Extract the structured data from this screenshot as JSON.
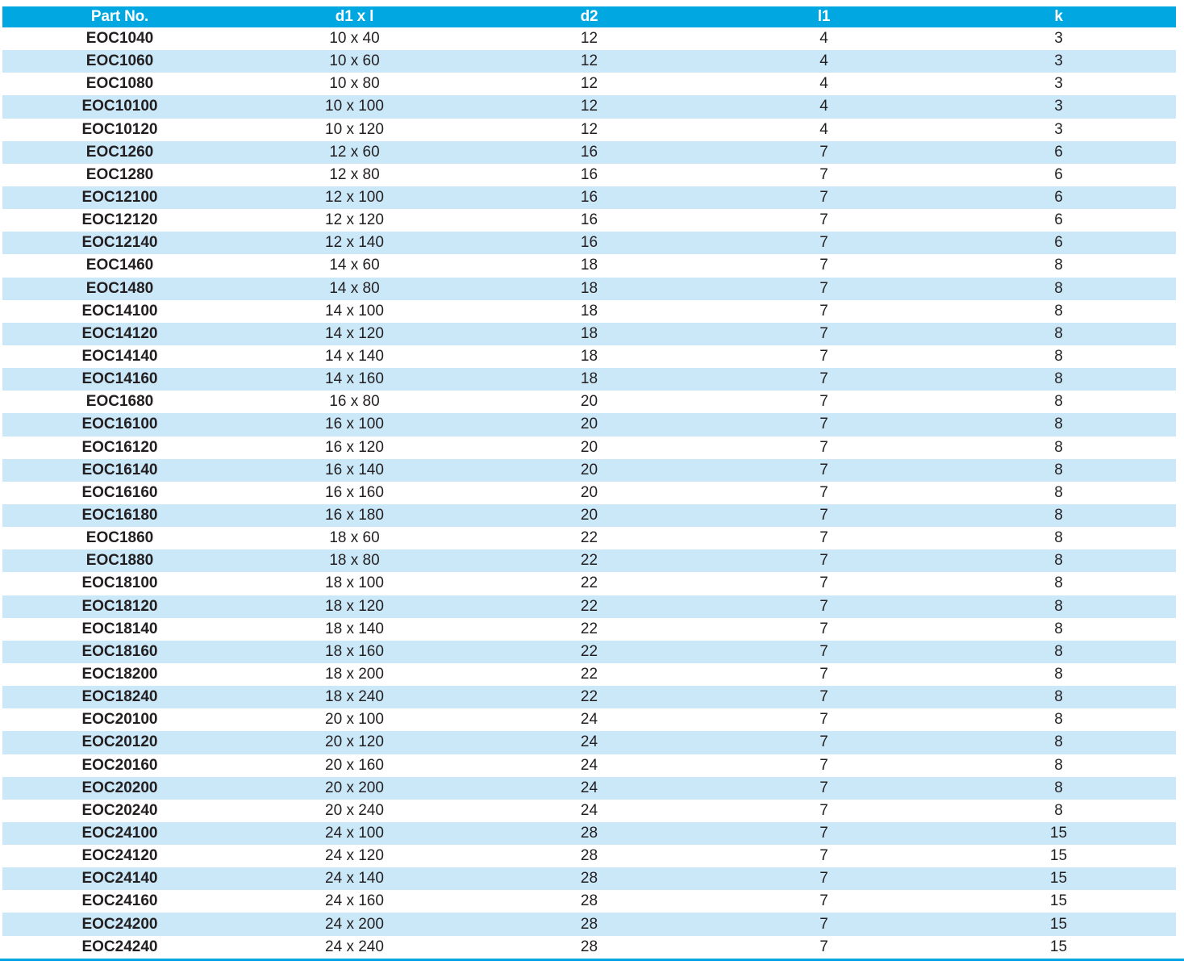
{
  "colors": {
    "header_bg": "#00A7E1",
    "header_text": "#FFFFFF",
    "stripe_bg": "#CBE8F9",
    "text": "#231F20",
    "bottom_rule": "#00A7E1"
  },
  "table": {
    "columns": [
      "Part No.",
      "d1 x l",
      "d2",
      "l1",
      "k"
    ],
    "rows": [
      [
        "EOC1040",
        "10 x 40",
        "12",
        "4",
        "3"
      ],
      [
        "EOC1060",
        "10 x 60",
        "12",
        "4",
        "3"
      ],
      [
        "EOC1080",
        "10 x 80",
        "12",
        "4",
        "3"
      ],
      [
        "EOC10100",
        "10 x 100",
        "12",
        "4",
        "3"
      ],
      [
        "EOC10120",
        "10 x 120",
        "12",
        "4",
        "3"
      ],
      [
        "EOC1260",
        "12 x 60",
        "16",
        "7",
        "6"
      ],
      [
        "EOC1280",
        "12 x 80",
        "16",
        "7",
        "6"
      ],
      [
        "EOC12100",
        "12 x 100",
        "16",
        "7",
        "6"
      ],
      [
        "EOC12120",
        "12 x 120",
        "16",
        "7",
        "6"
      ],
      [
        "EOC12140",
        "12 x 140",
        "16",
        "7",
        "6"
      ],
      [
        "EOC1460",
        "14 x 60",
        "18",
        "7",
        "8"
      ],
      [
        "EOC1480",
        "14 x 80",
        "18",
        "7",
        "8"
      ],
      [
        "EOC14100",
        "14 x 100",
        "18",
        "7",
        "8"
      ],
      [
        "EOC14120",
        "14 x 120",
        "18",
        "7",
        "8"
      ],
      [
        "EOC14140",
        "14 x 140",
        "18",
        "7",
        "8"
      ],
      [
        "EOC14160",
        "14 x 160",
        "18",
        "7",
        "8"
      ],
      [
        "EOC1680",
        "16 x 80",
        "20",
        "7",
        "8"
      ],
      [
        "EOC16100",
        "16 x 100",
        "20",
        "7",
        "8"
      ],
      [
        "EOC16120",
        "16 x 120",
        "20",
        "7",
        "8"
      ],
      [
        "EOC16140",
        "16 x 140",
        "20",
        "7",
        "8"
      ],
      [
        "EOC16160",
        "16 x 160",
        "20",
        "7",
        "8"
      ],
      [
        "EOC16180",
        "16 x 180",
        "20",
        "7",
        "8"
      ],
      [
        "EOC1860",
        "18 x 60",
        "22",
        "7",
        "8"
      ],
      [
        "EOC1880",
        "18 x 80",
        "22",
        "7",
        "8"
      ],
      [
        "EOC18100",
        "18 x 100",
        "22",
        "7",
        "8"
      ],
      [
        "EOC18120",
        "18 x 120",
        "22",
        "7",
        "8"
      ],
      [
        "EOC18140",
        "18 x 140",
        "22",
        "7",
        "8"
      ],
      [
        "EOC18160",
        "18 x 160",
        "22",
        "7",
        "8"
      ],
      [
        "EOC18200",
        "18 x 200",
        "22",
        "7",
        "8"
      ],
      [
        "EOC18240",
        "18 x 240",
        "22",
        "7",
        "8"
      ],
      [
        "EOC20100",
        "20 x 100",
        "24",
        "7",
        "8"
      ],
      [
        "EOC20120",
        "20 x 120",
        "24",
        "7",
        "8"
      ],
      [
        "EOC20160",
        "20 x 160",
        "24",
        "7",
        "8"
      ],
      [
        "EOC20200",
        "20 x 200",
        "24",
        "7",
        "8"
      ],
      [
        "EOC20240",
        "20 x 240",
        "24",
        "7",
        "8"
      ],
      [
        "EOC24100",
        "24 x 100",
        "28",
        "7",
        "15"
      ],
      [
        "EOC24120",
        "24 x 120",
        "28",
        "7",
        "15"
      ],
      [
        "EOC24140",
        "24 x 140",
        "28",
        "7",
        "15"
      ],
      [
        "EOC24160",
        "24 x 160",
        "28",
        "7",
        "15"
      ],
      [
        "EOC24200",
        "24 x 200",
        "28",
        "7",
        "15"
      ],
      [
        "EOC24240",
        "24 x 240",
        "28",
        "7",
        "15"
      ]
    ]
  }
}
